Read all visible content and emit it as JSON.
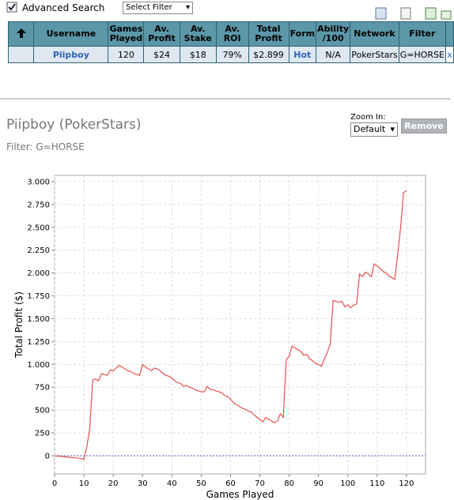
{
  "search": {
    "label": "Advanced Search",
    "filter_select": "Select Filter"
  },
  "table": {
    "headers": [
      "Username",
      "Games Played",
      "Av. Profit",
      "Av. Stake",
      "Av. ROI",
      "Total Profit",
      "Form",
      "Ability /100",
      "Network",
      "Filter"
    ],
    "rows": [
      [
        "Piipboy",
        "120",
        "$24",
        "$18",
        "79%",
        "$2.899",
        "Hot",
        "N/A",
        "PokerStars",
        "G=HORSE",
        "x"
      ]
    ]
  },
  "player": {
    "title": "Piipboy (PokerStars)",
    "filter": "Filter: G=HORSE"
  },
  "zoom": {
    "label": "Zoom In:",
    "value": "Default",
    "button": "Remove"
  },
  "chart_data": {
    "type": "line",
    "x_label": "Games Played",
    "y_label": "Total Profit ($)",
    "x": [
      0,
      3,
      6,
      9,
      10,
      11,
      12,
      13,
      14,
      15,
      16,
      17,
      18,
      19,
      20,
      21,
      22,
      23,
      24,
      25,
      26,
      27,
      28,
      29,
      30,
      31,
      32,
      33,
      34,
      35,
      36,
      37,
      38,
      39,
      40,
      41,
      42,
      43,
      44,
      45,
      46,
      47,
      48,
      49,
      50,
      51,
      52,
      53,
      54,
      55,
      56,
      57,
      58,
      59,
      60,
      61,
      62,
      63,
      64,
      65,
      66,
      67,
      68,
      69,
      70,
      71,
      72,
      73,
      74,
      75,
      76,
      77,
      78,
      79,
      80,
      81,
      82,
      83,
      84,
      85,
      86,
      87,
      88,
      89,
      90,
      91,
      92,
      93,
      94,
      95,
      96,
      97,
      98,
      99,
      100,
      101,
      102,
      103,
      104,
      105,
      106,
      107,
      108,
      109,
      110,
      111,
      112,
      113,
      114,
      115,
      116,
      117,
      118,
      119,
      120
    ],
    "series": [
      {
        "name": "Total Profit",
        "color": "#e85050",
        "values": [
          0,
          -10,
          -20,
          -30,
          -40,
          100,
          300,
          830,
          840,
          820,
          900,
          890,
          880,
          940,
          930,
          960,
          990,
          970,
          950,
          930,
          920,
          900,
          890,
          880,
          1000,
          970,
          950,
          930,
          960,
          950,
          930,
          900,
          880,
          870,
          850,
          820,
          800,
          790,
          760,
          770,
          750,
          740,
          720,
          710,
          700,
          700,
          760,
          730,
          720,
          710,
          700,
          690,
          660,
          650,
          620,
          580,
          560,
          540,
          520,
          510,
          490,
          480,
          450,
          420,
          400,
          370,
          420,
          400,
          380,
          360,
          380,
          460,
          420,
          1050,
          1090,
          1200,
          1180,
          1160,
          1140,
          1100,
          1110,
          1060,
          1040,
          1010,
          1000,
          980,
          1060,
          1130,
          1220,
          1700,
          1690,
          1680,
          1690,
          1630,
          1650,
          1620,
          1650,
          1660,
          1990,
          1960,
          2010,
          1990,
          1960,
          2100,
          2080,
          2050,
          2020,
          2000,
          1970,
          1950,
          1930,
          2200,
          2500,
          2880,
          2899
        ]
      }
    ],
    "xlim": [
      0,
      126.5
    ],
    "ylim": [
      -199,
      3069
    ],
    "xticks": [
      0,
      10,
      20,
      30,
      40,
      50,
      60,
      70,
      80,
      90,
      100,
      110,
      120
    ],
    "yticks": [
      0,
      250,
      500,
      750,
      {
        "value": 1000,
        "label": "1.000"
      },
      {
        "value": 1250,
        "label": "1.250"
      },
      {
        "value": 1500,
        "label": "1.500"
      },
      {
        "value": 1750,
        "label": "1.750"
      },
      {
        "value": 2000,
        "label": "2.000"
      },
      {
        "value": 2250,
        "label": "2.250"
      },
      {
        "value": 2500,
        "label": "2.500"
      },
      {
        "value": 2750,
        "label": "2.750"
      },
      {
        "value": 3000,
        "label": "3.000"
      }
    ],
    "grid": true
  }
}
